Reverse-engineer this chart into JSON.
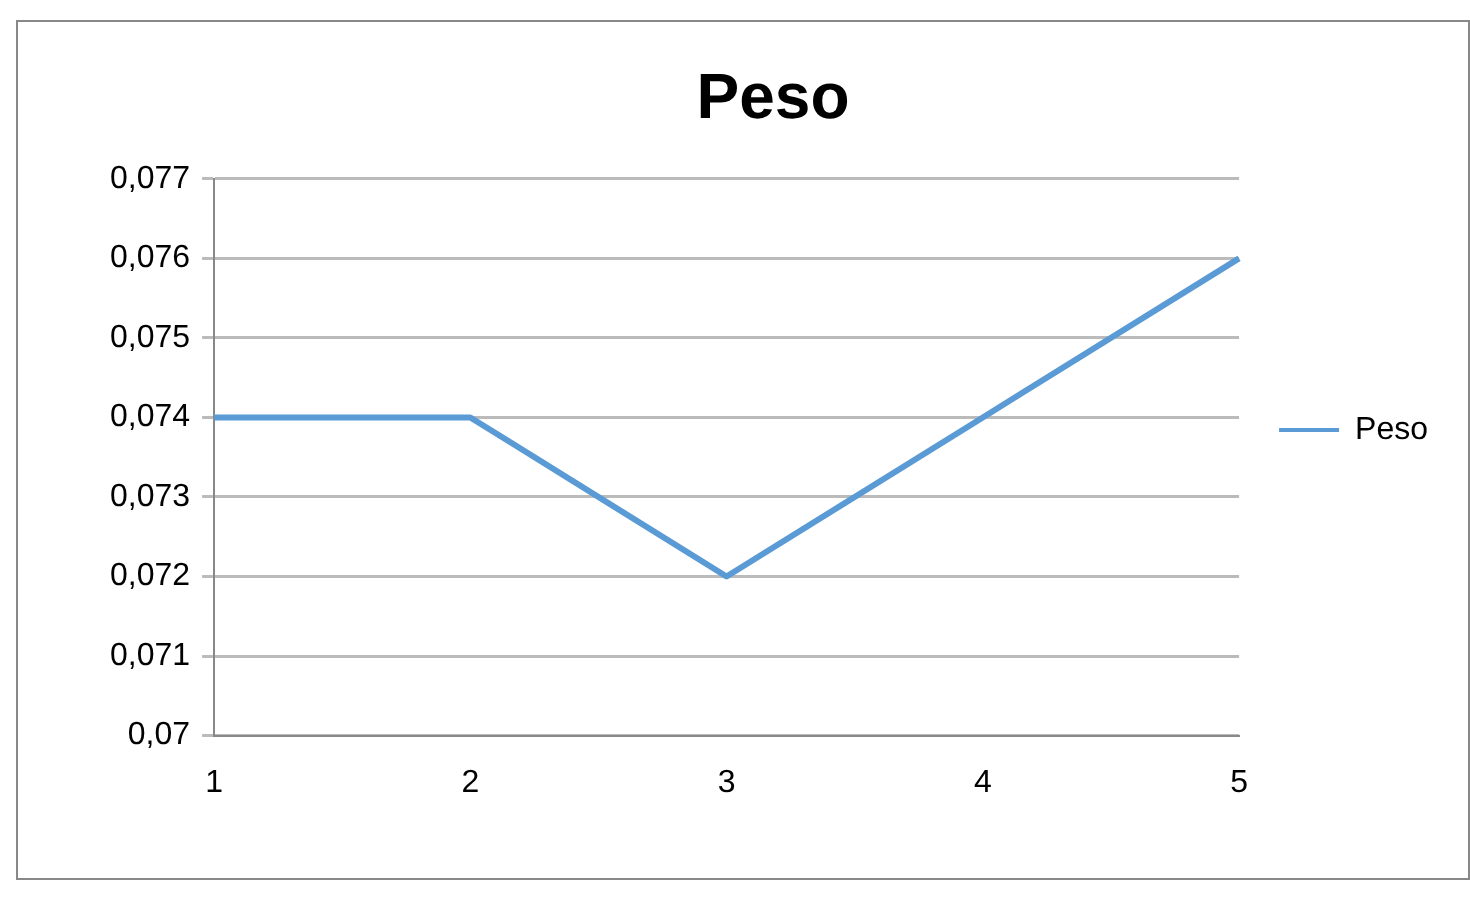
{
  "chart_data": {
    "type": "line",
    "title": "Peso",
    "categories": [
      "1",
      "2",
      "3",
      "4",
      "5"
    ],
    "series": [
      {
        "name": "Peso",
        "color": "#5b9bd5",
        "values": [
          0.074,
          0.074,
          0.072,
          0.074,
          0.076
        ]
      }
    ],
    "ylim": [
      0.07,
      0.077
    ],
    "yticks": [
      {
        "value": 0.07,
        "label": "0,07"
      },
      {
        "value": 0.071,
        "label": "0,071"
      },
      {
        "value": 0.072,
        "label": "0,072"
      },
      {
        "value": 0.073,
        "label": "0,073"
      },
      {
        "value": 0.074,
        "label": "0,074"
      },
      {
        "value": 0.075,
        "label": "0,075"
      },
      {
        "value": 0.076,
        "label": "0,076"
      },
      {
        "value": 0.077,
        "label": "0,077"
      }
    ],
    "grid": "y",
    "legend": "right",
    "marker": "none",
    "line_style": "solid"
  }
}
